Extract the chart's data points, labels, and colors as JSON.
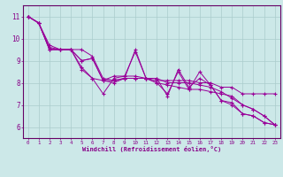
{
  "xlabel": "Windchill (Refroidissement éolien,°C)",
  "background_color": "#cce8e8",
  "line_color": "#990099",
  "grid_color": "#aacccc",
  "axis_color": "#880088",
  "spine_color": "#660066",
  "xlim": [
    -0.5,
    23.5
  ],
  "ylim": [
    5.5,
    11.5
  ],
  "yticks": [
    6,
    7,
    8,
    9,
    10,
    11
  ],
  "xticks": [
    0,
    1,
    2,
    3,
    4,
    5,
    6,
    7,
    8,
    9,
    10,
    11,
    12,
    13,
    14,
    15,
    16,
    17,
    18,
    19,
    20,
    21,
    22,
    23
  ],
  "series": [
    [
      11.0,
      10.7,
      9.7,
      9.5,
      9.5,
      8.6,
      8.2,
      7.5,
      8.2,
      8.3,
      9.4,
      8.2,
      8.2,
      7.4,
      8.6,
      7.8,
      8.2,
      7.9,
      7.2,
      7.1,
      6.6,
      6.5,
      6.2,
      6.1
    ],
    [
      11.0,
      10.7,
      9.5,
      9.5,
      9.5,
      9.0,
      9.1,
      8.1,
      8.1,
      8.2,
      8.2,
      8.2,
      8.1,
      8.1,
      8.1,
      8.1,
      8.0,
      8.0,
      7.8,
      7.8,
      7.5,
      7.5,
      7.5,
      7.5
    ],
    [
      11.0,
      10.7,
      9.5,
      9.5,
      9.5,
      9.0,
      9.1,
      8.1,
      8.3,
      8.3,
      8.3,
      8.2,
      8.0,
      7.9,
      7.8,
      7.7,
      7.7,
      7.6,
      7.5,
      7.4,
      7.0,
      6.8,
      6.5,
      6.1
    ],
    [
      11.0,
      10.7,
      9.5,
      9.5,
      9.5,
      9.5,
      9.2,
      8.2,
      8.1,
      8.2,
      8.2,
      8.2,
      8.2,
      8.0,
      8.0,
      8.0,
      7.9,
      7.8,
      7.6,
      7.3,
      7.0,
      6.8,
      6.5,
      6.1
    ],
    [
      11.0,
      10.7,
      9.6,
      9.5,
      9.5,
      8.7,
      8.2,
      8.1,
      8.0,
      8.2,
      9.5,
      8.2,
      8.0,
      7.5,
      8.5,
      7.7,
      8.5,
      7.9,
      7.2,
      7.0,
      6.6,
      6.5,
      6.2,
      6.1
    ]
  ]
}
